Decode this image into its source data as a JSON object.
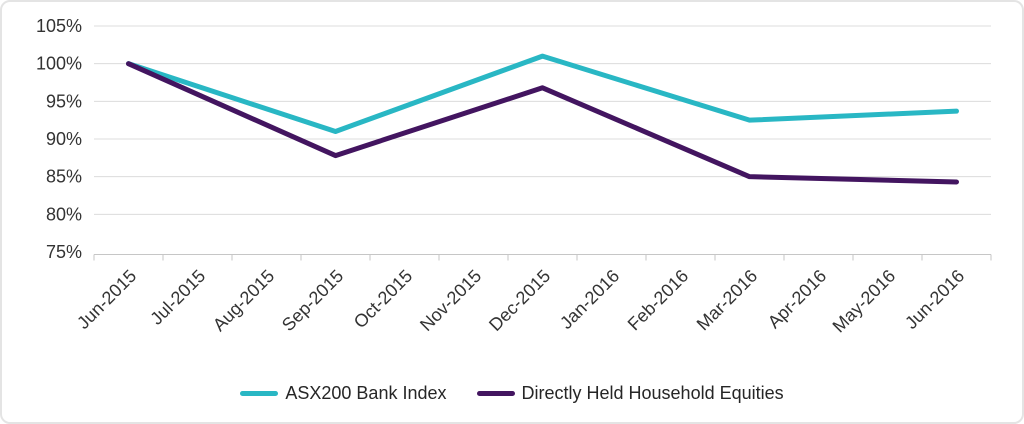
{
  "colors": {
    "background": "#ffffff",
    "frame_border": "#e4e4e4",
    "gridline": "#dcdcdc",
    "axis": "#c6c6c6",
    "text": "#333333",
    "teal_series": "#29b7c4",
    "purple_series": "#431560"
  },
  "chart_data": {
    "type": "line",
    "title": "",
    "xlabel": "",
    "ylabel": "",
    "grid": true,
    "legend_position": "bottom",
    "categories": [
      "Jun-2015",
      "Jul-2015",
      "Aug-2015",
      "Sep-2015",
      "Oct-2015",
      "Nov-2015",
      "Dec-2015",
      "Jan-2016",
      "Feb-2016",
      "Mar-2016",
      "Apr-2016",
      "May-2016",
      "Jun-2016"
    ],
    "y_axis": {
      "min": 75,
      "max": 105,
      "step": 5,
      "unit": "%",
      "tick_labels": [
        "105%",
        "100%",
        "95%",
        "90%",
        "85%",
        "80%",
        "75%"
      ]
    },
    "series": [
      {
        "name": "ASX200 Bank Index",
        "color": "#29b7c4",
        "points": [
          {
            "month": "Jun-2015",
            "value": 100
          },
          {
            "month": "Sep-2015",
            "value": 91
          },
          {
            "month": "Dec-2015",
            "value": 101
          },
          {
            "month": "Mar-2016",
            "value": 92.5
          },
          {
            "month": "Jun-2016",
            "value": 93.7
          }
        ]
      },
      {
        "name": "Directly Held Household Equities",
        "color": "#431560",
        "points": [
          {
            "month": "Jun-2015",
            "value": 100
          },
          {
            "month": "Sep-2015",
            "value": 87.8
          },
          {
            "month": "Dec-2015",
            "value": 96.8
          },
          {
            "month": "Mar-2016",
            "value": 85
          },
          {
            "month": "Jun-2016",
            "value": 84.3
          }
        ]
      }
    ]
  }
}
